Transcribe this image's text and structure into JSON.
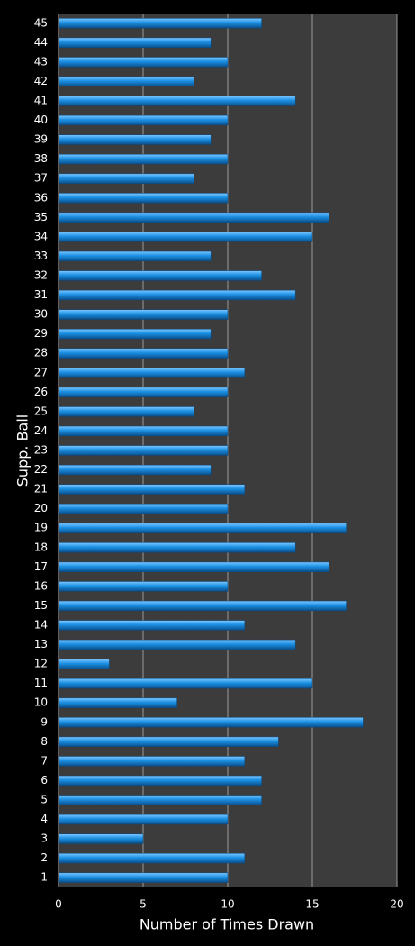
{
  "chart_data": {
    "type": "barh",
    "x_label": "Number of Times Drawn",
    "y_label": "Supp. Ball",
    "categories": [
      "1",
      "2",
      "3",
      "4",
      "5",
      "6",
      "7",
      "8",
      "9",
      "10",
      "11",
      "12",
      "13",
      "14",
      "15",
      "16",
      "17",
      "18",
      "19",
      "20",
      "21",
      "22",
      "23",
      "24",
      "25",
      "26",
      "27",
      "28",
      "29",
      "30",
      "31",
      "32",
      "33",
      "34",
      "35",
      "36",
      "37",
      "38",
      "39",
      "40",
      "41",
      "42",
      "43",
      "44",
      "45"
    ],
    "values": [
      10,
      11,
      5,
      10,
      12,
      12,
      11,
      13,
      18,
      7,
      15,
      3,
      14,
      11,
      17,
      10,
      16,
      14,
      17,
      10,
      11,
      9,
      10,
      10,
      8,
      10,
      11,
      10,
      9,
      10,
      14,
      12,
      9,
      15,
      16,
      10,
      8,
      10,
      9,
      10,
      14,
      8,
      10,
      9,
      12
    ],
    "color": "#1a8fe3",
    "xlim": [
      0,
      20
    ],
    "xticks": [
      0,
      5,
      10,
      15,
      20
    ],
    "grid": true
  }
}
